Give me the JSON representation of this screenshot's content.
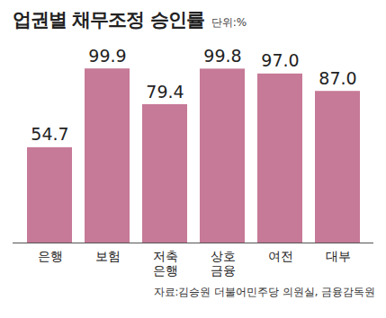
{
  "chart_data": {
    "type": "bar",
    "title": "업권별 채무조정 승인률",
    "subtitle": "단위:%",
    "categories": [
      "은행",
      "보험",
      "저축\n은행",
      "상호\n금융",
      "여전",
      "대부"
    ],
    "values": [
      54.7,
      99.9,
      79.4,
      99.8,
      97.0,
      87.0
    ],
    "value_labels": [
      "54.7",
      "99.9",
      "79.4",
      "99.8",
      "97.0",
      "87.0"
    ],
    "color": "#c67a97",
    "ylim": [
      0,
      100
    ],
    "data_labels": true,
    "tick_labels": "x",
    "grid": false,
    "source": "자료:김승원 더불어민주당 의원실, 금융감독원"
  }
}
